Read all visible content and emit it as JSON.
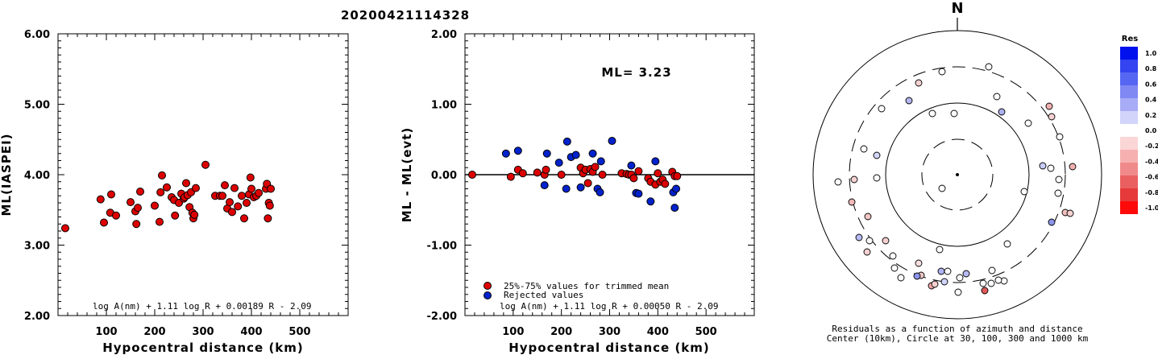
{
  "event_id": "20200421114328",
  "chart_data": [
    {
      "type": "scatter",
      "ylabel": "ML(IASPEI)",
      "xlabel": "Hypocentral distance (km)",
      "xlim": [
        0,
        600
      ],
      "ylim": [
        2.0,
        6.0
      ],
      "xticks": [
        "100",
        "200",
        "300",
        "400",
        "500"
      ],
      "yticks": [
        "2.00",
        "3.00",
        "4.00",
        "5.00",
        "6.00"
      ],
      "formula": "log A(nm) + 1.11 log R + 0.00189 R - 2.09",
      "series": [
        {
          "color": "#dd0000",
          "points": [
            [
              15,
              3.24
            ],
            [
              88,
              3.65
            ],
            [
              95,
              3.32
            ],
            [
              108,
              3.46
            ],
            [
              110,
              3.72
            ],
            [
              120,
              3.42
            ],
            [
              150,
              3.61
            ],
            [
              160,
              3.48
            ],
            [
              162,
              3.3
            ],
            [
              165,
              3.53
            ],
            [
              170,
              3.76
            ],
            [
              200,
              3.56
            ],
            [
              210,
              3.33
            ],
            [
              212,
              3.75
            ],
            [
              215,
              3.99
            ],
            [
              225,
              3.82
            ],
            [
              235,
              3.68
            ],
            [
              240,
              3.64
            ],
            [
              242,
              3.42
            ],
            [
              250,
              3.6
            ],
            [
              255,
              3.73
            ],
            [
              260,
              3.66
            ],
            [
              262,
              3.68
            ],
            [
              265,
              3.88
            ],
            [
              268,
              3.71
            ],
            [
              272,
              3.54
            ],
            [
              275,
              3.75
            ],
            [
              278,
              3.46
            ],
            [
              280,
              3.38
            ],
            [
              282,
              3.43
            ],
            [
              285,
              3.81
            ],
            [
              305,
              4.14
            ],
            [
              325,
              3.7
            ],
            [
              335,
              3.7
            ],
            [
              340,
              3.7
            ],
            [
              345,
              3.85
            ],
            [
              350,
              3.52
            ],
            [
              355,
              3.61
            ],
            [
              360,
              3.47
            ],
            [
              365,
              3.81
            ],
            [
              372,
              3.55
            ],
            [
              380,
              3.7
            ],
            [
              385,
              3.38
            ],
            [
              390,
              3.6
            ],
            [
              395,
              3.72
            ],
            [
              398,
              3.96
            ],
            [
              400,
              3.8
            ],
            [
              405,
              3.68
            ],
            [
              410,
              3.7
            ],
            [
              415,
              3.74
            ],
            [
              430,
              3.8
            ],
            [
              432,
              3.87
            ],
            [
              434,
              3.38
            ],
            [
              436,
              3.6
            ],
            [
              438,
              3.56
            ],
            [
              440,
              3.8
            ]
          ]
        }
      ]
    },
    {
      "type": "scatter",
      "ylabel": "ML - ML(evt)",
      "xlabel": "Hypocentral distance (km)",
      "xlim": [
        0,
        600
      ],
      "ylim": [
        -2.0,
        2.0
      ],
      "xticks": [
        "100",
        "200",
        "300",
        "400",
        "500"
      ],
      "yticks": [
        "-2.00",
        "-1.00",
        "0.00",
        "1.00",
        "2.00"
      ],
      "annotation": "ML= 3.23",
      "formula": "log A(nm) + 1.11 log R + 0.00050 R - 2.09",
      "legend": [
        {
          "label": "25%-75% values for trimmed mean",
          "color": "#dd0000"
        },
        {
          "label": "Rejected values",
          "color": "#0022cc"
        }
      ],
      "series": [
        {
          "name": "25%-75% values for trimmed mean",
          "color": "#dd0000",
          "points": [
            [
              15,
              0.0
            ],
            [
              95,
              -0.03
            ],
            [
              110,
              0.07
            ],
            [
              120,
              0.02
            ],
            [
              150,
              0.03
            ],
            [
              165,
              0.0
            ],
            [
              168,
              0.07
            ],
            [
              200,
              0.0
            ],
            [
              240,
              0.1
            ],
            [
              245,
              0.02
            ],
            [
              250,
              0.07
            ],
            [
              255,
              -0.12
            ],
            [
              260,
              0.08
            ],
            [
              265,
              0.04
            ],
            [
              270,
              0.11
            ],
            [
              285,
              0.0
            ],
            [
              325,
              0.02
            ],
            [
              335,
              0.01
            ],
            [
              340,
              0.0
            ],
            [
              345,
              0.0
            ],
            [
              350,
              -0.05
            ],
            [
              360,
              0.05
            ],
            [
              380,
              -0.05
            ],
            [
              385,
              -0.1
            ],
            [
              395,
              -0.14
            ],
            [
              400,
              0.02
            ],
            [
              405,
              -0.1
            ],
            [
              410,
              -0.07
            ],
            [
              415,
              -0.13
            ],
            [
              430,
              0.04
            ],
            [
              435,
              -0.02
            ],
            [
              440,
              -0.02
            ]
          ]
        },
        {
          "name": "Rejected values",
          "color": "#0022cc",
          "points": [
            [
              85,
              0.3
            ],
            [
              110,
              0.34
            ],
            [
              165,
              -0.15
            ],
            [
              170,
              0.3
            ],
            [
              195,
              0.17
            ],
            [
              210,
              -0.2
            ],
            [
              212,
              0.47
            ],
            [
              220,
              0.25
            ],
            [
              230,
              0.28
            ],
            [
              240,
              -0.18
            ],
            [
              265,
              0.3
            ],
            [
              275,
              -0.2
            ],
            [
              280,
              -0.25
            ],
            [
              282,
              0.19
            ],
            [
              305,
              0.48
            ],
            [
              345,
              0.13
            ],
            [
              355,
              -0.26
            ],
            [
              360,
              -0.27
            ],
            [
              385,
              -0.38
            ],
            [
              395,
              0.19
            ],
            [
              432,
              -0.25
            ],
            [
              435,
              -0.47
            ],
            [
              438,
              -0.2
            ]
          ]
        }
      ]
    },
    {
      "type": "polar",
      "north_label": "N",
      "caption1": "Residuals as a function of azimuth and distance",
      "caption2": "Center (10km), Circle at 30, 100, 300 and 1000 km",
      "colorbar": {
        "title": "Res",
        "ticks": [
          "1.0",
          "0.8",
          "0.6",
          "0.4",
          "0.2",
          "0.0",
          "-0.2",
          "-0.4",
          "-0.6",
          "-0.8",
          "-1.0"
        ]
      }
    }
  ]
}
